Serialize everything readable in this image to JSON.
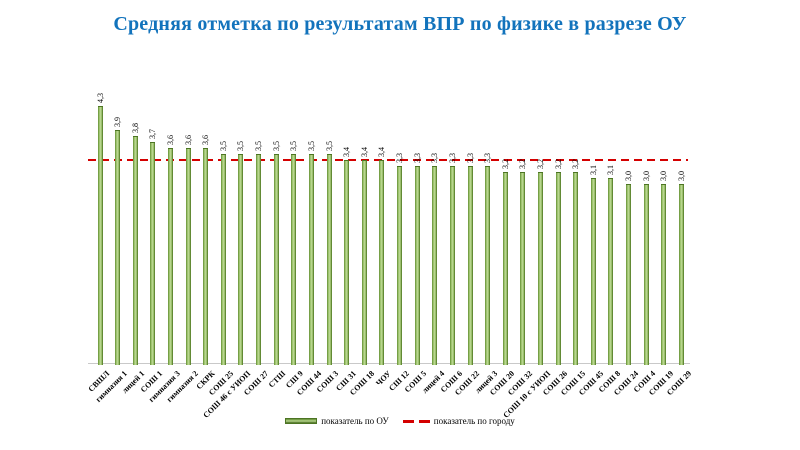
{
  "page": {
    "title": "Средняя отметка по результатам ВПР по физике в разрезе ОУ"
  },
  "legend": {
    "bar_series_label": "показатель по ОУ",
    "reference_line_label": "показатель по городу"
  },
  "colors": {
    "title_text": "#1273BC",
    "bar_light": "#b7d68e",
    "bar_dark": "#44691c",
    "reference_line": "#d40000",
    "axis_line": "#c9c9c9",
    "label_text": "#000000"
  },
  "chart_data": {
    "type": "bar",
    "title": "Средняя отметка по результатам ВПР по физике в разрезе ОУ",
    "categories": [
      "СВШЛ",
      "гимназия 1",
      "лицей 1",
      "СОШ 1",
      "гимназия 3",
      "гимназия 2",
      "СКРК",
      "СОШ 25",
      "СОШ 46 с УИОП",
      "СОШ 27",
      "СТШ",
      "СШ 9",
      "СОШ 44",
      "СОШ 3",
      "СШ 31",
      "СОШ 18",
      "ЧОУ",
      "СШ 12",
      "СОШ 5",
      "лицей 4",
      "СОШ 6",
      "СОШ 22",
      "лицей 3",
      "СОШ 20",
      "СОШ 32",
      "СОШ 10 с УИОП",
      "СОШ 26",
      "СОШ 15",
      "СОШ 45",
      "СОШ 8",
      "СОШ 24",
      "СОШ 4",
      "СОШ 19",
      "СОШ 29"
    ],
    "series": [
      {
        "name": "показатель по ОУ",
        "values": [
          4.3,
          3.9,
          3.8,
          3.7,
          3.6,
          3.6,
          3.6,
          3.5,
          3.5,
          3.5,
          3.5,
          3.5,
          3.5,
          3.5,
          3.4,
          3.4,
          3.4,
          3.3,
          3.3,
          3.3,
          3.3,
          3.3,
          3.3,
          3.2,
          3.2,
          3.2,
          3.2,
          3.2,
          3.1,
          3.1,
          3.0,
          3.0,
          3.0,
          3.0
        ]
      }
    ],
    "reference_line": {
      "name": "показатель по городу",
      "value": 3.4,
      "style": "dashed",
      "color": "#d40000"
    },
    "value_labels": {
      "shown": true,
      "rotation": -90,
      "decimal_separator": ","
    },
    "xlabel": "",
    "ylabel": "",
    "ylim": [
      0,
      4.6
    ],
    "grid": false,
    "y_axis_shown": false,
    "legend_position": "bottom"
  }
}
